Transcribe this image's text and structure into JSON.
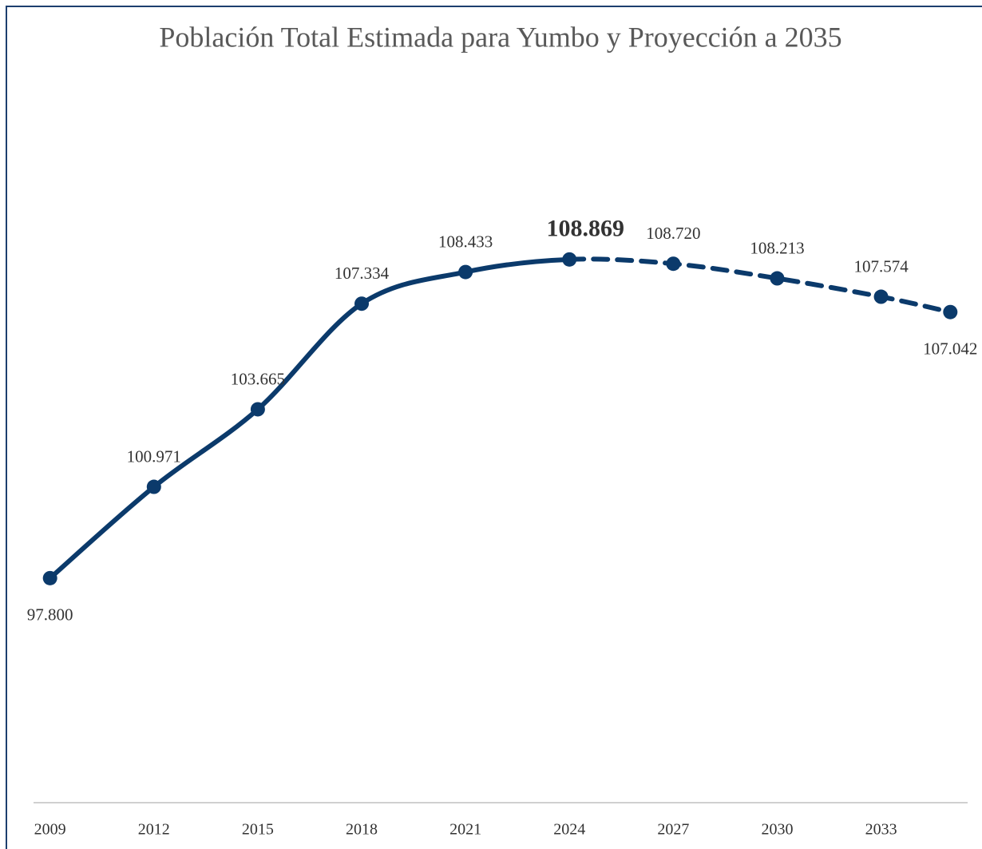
{
  "chart_data": {
    "type": "line",
    "title": "Población Total Estimada para Yumbo y Proyección a 2035",
    "x": [
      2009,
      2012,
      2015,
      2018,
      2021,
      2024,
      2027,
      2030,
      2033,
      2035
    ],
    "values": [
      97800,
      100971,
      103665,
      107334,
      108433,
      108869,
      108720,
      108213,
      107574,
      107042
    ],
    "value_labels": [
      "97.800",
      "100.971",
      "103.665",
      "107.334",
      "108.433",
      "108.869",
      "108.720",
      "108.213",
      "107.574",
      "107.042"
    ],
    "label_positions": [
      "below",
      "above",
      "above",
      "above",
      "above",
      "above",
      "above",
      "above",
      "above",
      "below"
    ],
    "highlight_label": 2024,
    "dashed_from_x": 2024,
    "color": "#0b3a6b",
    "xlim": [
      2008.5,
      2035.8
    ],
    "xticks": [
      2009,
      2012,
      2015,
      2018,
      2021,
      2024,
      2027,
      2030,
      2033
    ],
    "ylim": [
      90000,
      112000
    ],
    "grid": false
  }
}
